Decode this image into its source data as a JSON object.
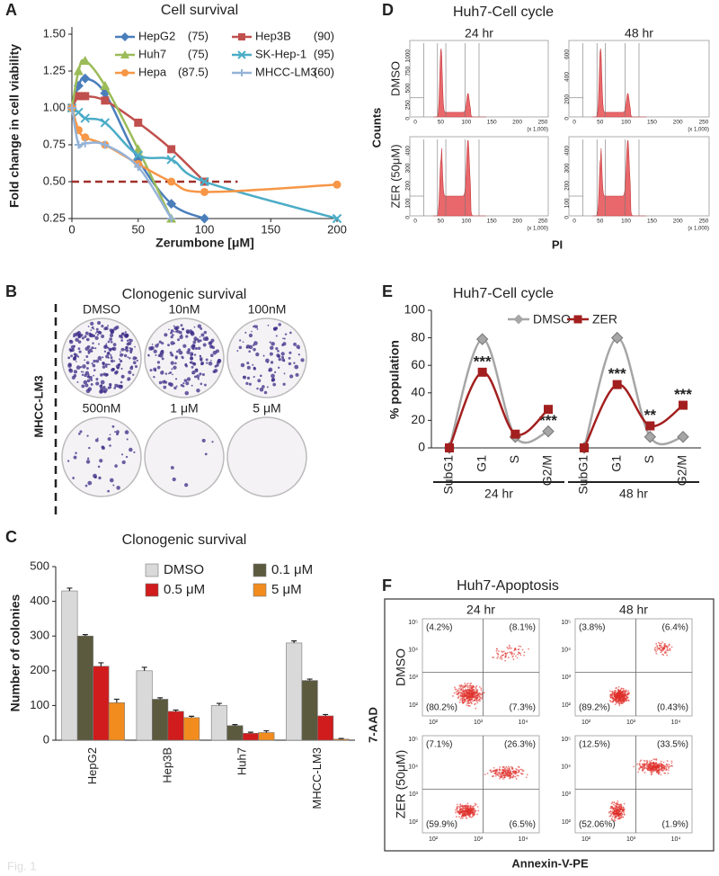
{
  "figure_label": "Fig. 1",
  "panel_b": {
    "letter": "B",
    "title": "Clonogenic survival",
    "cell_line": "MHCC-LM3",
    "dishes": [
      "DMSO",
      "10nM",
      "100nM",
      "500nM",
      "1 μM",
      "5 μM"
    ]
  },
  "panel_d": {
    "letter": "D",
    "title": "Huh7-Cell cycle",
    "columns": [
      "24 hr",
      "48 hr"
    ],
    "rows": [
      "DMSO",
      "ZER (50μM)"
    ],
    "y_label": "Counts",
    "x_label": "PI",
    "x_ticks": [
      "0",
      "50",
      "100",
      "150",
      "200",
      "250"
    ],
    "x_unit": "(x 1,000)",
    "y_ticks": [
      [
        "0",
        "250",
        "500",
        "750",
        "1000"
      ],
      [
        "0",
        "200",
        "400",
        "600"
      ],
      [
        "0",
        "100",
        "200",
        "300",
        "400"
      ],
      [
        "0",
        "100",
        "200",
        "300",
        "400"
      ]
    ]
  },
  "panel_f": {
    "letter": "F",
    "title": "Huh7-Apoptosis",
    "columns": [
      "24 hr",
      "48 hr"
    ],
    "rows": [
      "DMSO",
      "ZER (50μM)"
    ],
    "y_label": "7-AAD",
    "x_label": "Annexin-V-PE",
    "x_ticks": [
      "10²",
      "10³",
      "10⁴"
    ],
    "y_ticks": [
      "10²",
      "10³",
      "10⁴",
      "10⁵"
    ],
    "quadrants": [
      [
        "(4.2%)",
        "(8.1%)",
        "(80.2%)",
        "(7.3%)"
      ],
      [
        "(3.8%)",
        "(6.4%)",
        "(89.2%)",
        "(0.43%)"
      ],
      [
        "(7.1%)",
        "(26.3%)",
        "(59.9%)",
        "(6.5%)"
      ],
      [
        "(12.5%)",
        "(33.5%)",
        "(52.06%)",
        "(1.9%)"
      ]
    ]
  },
  "chart_data": [
    {
      "type": "line",
      "letter": "A",
      "title": "Cell survival",
      "x_label": "Zerumbone [μM]",
      "y_label": "Fold change in cell viability",
      "xlim": [
        0,
        200
      ],
      "xticks": [
        0,
        50,
        100,
        150,
        200
      ],
      "ylim": [
        0.25,
        1.5
      ],
      "yticks": [
        0.25,
        {
          "value": 0.5,
          "label": "0.50"
        },
        0.75,
        {
          "value": 1,
          "label": "1.00"
        },
        1.25,
        {
          "value": 1.5,
          "label": "1.50"
        }
      ],
      "reference_line": {
        "y": 0.5,
        "x": [
          0,
          125
        ],
        "color": "#a0302c"
      },
      "series": [
        {
          "name": "HepG2",
          "legend_note": "(75)",
          "color": "#4a7ebb",
          "marker": "diamond",
          "x": [
            0,
            5,
            10,
            25,
            50,
            75,
            100
          ],
          "values": [
            1.0,
            1.15,
            1.2,
            1.1,
            0.65,
            0.35,
            0.25
          ]
        },
        {
          "name": "Hep3B",
          "legend_note": "(90)",
          "color": "#c0504d",
          "marker": "square",
          "x": [
            0,
            5,
            10,
            25,
            50,
            75,
            100
          ],
          "values": [
            1.0,
            1.08,
            1.08,
            1.05,
            0.9,
            0.72,
            0.5
          ]
        },
        {
          "name": "Huh7",
          "legend_note": "(75)",
          "color": "#9bbb59",
          "marker": "triangle",
          "x": [
            0,
            5,
            10,
            25,
            50,
            75
          ],
          "values": [
            1.0,
            1.25,
            1.32,
            1.15,
            0.72,
            0.25
          ]
        },
        {
          "name": "SK-Hep-1",
          "legend_note": "(95)",
          "color": "#4bacc6",
          "marker": "x",
          "x": [
            0,
            5,
            10,
            25,
            50,
            75,
            100,
            200
          ],
          "values": [
            1.0,
            0.97,
            0.93,
            0.9,
            0.68,
            0.65,
            0.5,
            0.25
          ]
        },
        {
          "name": "Hepa",
          "legend_note": "(87.5)",
          "color": "#f79646",
          "marker": "circle",
          "x": [
            0,
            5,
            10,
            25,
            50,
            75,
            100,
            200
          ],
          "values": [
            1.0,
            0.85,
            0.8,
            0.75,
            0.62,
            0.5,
            0.43,
            0.48
          ]
        },
        {
          "name": "MHCC-LM3",
          "legend_note": "(60)",
          "color": "#95b3d7",
          "marker": "plus",
          "x": [
            0,
            5,
            10,
            25,
            50,
            75
          ],
          "values": [
            1.0,
            0.75,
            0.76,
            0.75,
            0.6,
            0.25
          ]
        }
      ]
    },
    {
      "type": "bar",
      "letter": "C",
      "title": "Clonogenic survival",
      "y_label": "Number of colonies",
      "categories": [
        "HepG2",
        "Hep3B",
        "Huh7",
        "MHCC-LM3"
      ],
      "ylim": [
        0,
        500
      ],
      "yticks": [
        0,
        100,
        200,
        300,
        400,
        500
      ],
      "series": [
        {
          "name": "DMSO",
          "color": "#d9d9d9",
          "values": [
            430,
            200,
            100,
            280
          ],
          "errors": [
            8,
            10,
            6,
            6
          ]
        },
        {
          "name": "0.1 μM",
          "color": "#5b5a3f",
          "values": [
            300,
            118,
            42,
            172
          ],
          "errors": [
            4,
            4,
            3,
            4
          ]
        },
        {
          "name": "0.5 μM",
          "color": "#d01c1c",
          "values": [
            213,
            83,
            20,
            70
          ],
          "errors": [
            10,
            4,
            3,
            4
          ]
        },
        {
          "name": "5 μM",
          "color": "#f28c1e",
          "values": [
            108,
            65,
            22,
            3
          ],
          "errors": [
            10,
            4,
            5,
            2
          ]
        }
      ]
    },
    {
      "type": "line",
      "letter": "E",
      "title": "Huh7-Cell cycle",
      "y_label": "% population",
      "categories": [
        "SubG1",
        "G1",
        "S",
        "G2/M",
        "SubG1",
        "G1",
        "S",
        "G2/M"
      ],
      "groups": [
        "24 hr",
        "48 hr"
      ],
      "ylim": [
        0,
        100
      ],
      "yticks": [
        0,
        20,
        40,
        60,
        80,
        100
      ],
      "series": [
        {
          "name": "DMSO",
          "color": "#a6a6a6",
          "marker": "diamond",
          "values": [
            0,
            79,
            8,
            12,
            0,
            80,
            8,
            8
          ],
          "significance": [
            null,
            null,
            null,
            "***",
            null,
            null,
            null,
            null
          ]
        },
        {
          "name": "ZER",
          "color": "#a31f1f",
          "marker": "square",
          "values": [
            0,
            55,
            10,
            28,
            0,
            46,
            16,
            31
          ],
          "significance": [
            null,
            "***",
            null,
            null,
            null,
            "***",
            "**",
            "***"
          ]
        }
      ]
    }
  ]
}
